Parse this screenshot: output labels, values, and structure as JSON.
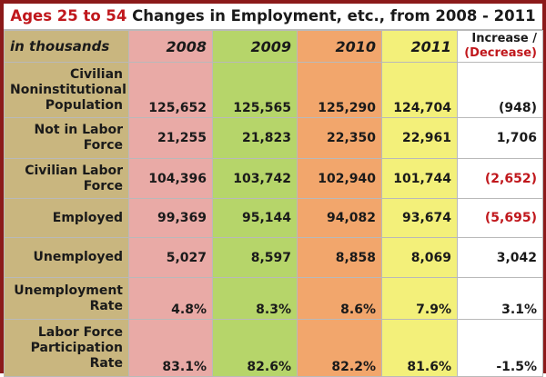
{
  "title": {
    "part1": "Ages 25 to 54",
    "part2": " Changes in Employment, etc., from 2008 - 2011"
  },
  "colors": {
    "frame": "#8b1a1a",
    "label_col": "#c9b67f",
    "y2008": "#e9aaa6",
    "y2009": "#b6d56a",
    "y2010": "#f2a66c",
    "y2011": "#f3f07a",
    "decrease": "#c0171c"
  },
  "chart_data": {
    "type": "table",
    "unit_label": "in thousands",
    "columns": [
      "2008",
      "2009",
      "2010",
      "2011"
    ],
    "increase_header": "Increase /",
    "decrease_header": "(Decrease)",
    "rows": [
      {
        "label": [
          "Civilian",
          "Noninstitutional",
          "Population"
        ],
        "values": [
          "125,652",
          "125,565",
          "125,290",
          "124,704"
        ],
        "change": "(948)",
        "is_decrease": false
      },
      {
        "label": [
          "Not in Labor",
          "Force"
        ],
        "values": [
          "21,255",
          "21,823",
          "22,350",
          "22,961"
        ],
        "change": "1,706",
        "is_decrease": false
      },
      {
        "label": [
          "Civilian Labor",
          "Force"
        ],
        "values": [
          "104,396",
          "103,742",
          "102,940",
          "101,744"
        ],
        "change": "(2,652)",
        "is_decrease": true
      },
      {
        "label": [
          "Employed"
        ],
        "values": [
          "99,369",
          "95,144",
          "94,082",
          "93,674"
        ],
        "change": "(5,695)",
        "is_decrease": true
      },
      {
        "label": [
          "Unemployed"
        ],
        "values": [
          "5,027",
          "8,597",
          "8,858",
          "8,069"
        ],
        "change": "3,042",
        "is_decrease": false
      },
      {
        "label": [
          "Unemployment",
          "Rate"
        ],
        "values": [
          "4.8%",
          "8.3%",
          "8.6%",
          "7.9%"
        ],
        "change": "3.1%",
        "is_decrease": false
      },
      {
        "label": [
          "Labor Force",
          "Participation",
          "Rate"
        ],
        "values": [
          "83.1%",
          "82.6%",
          "82.2%",
          "81.6%"
        ],
        "change": "-1.5%",
        "is_decrease": false
      }
    ]
  }
}
